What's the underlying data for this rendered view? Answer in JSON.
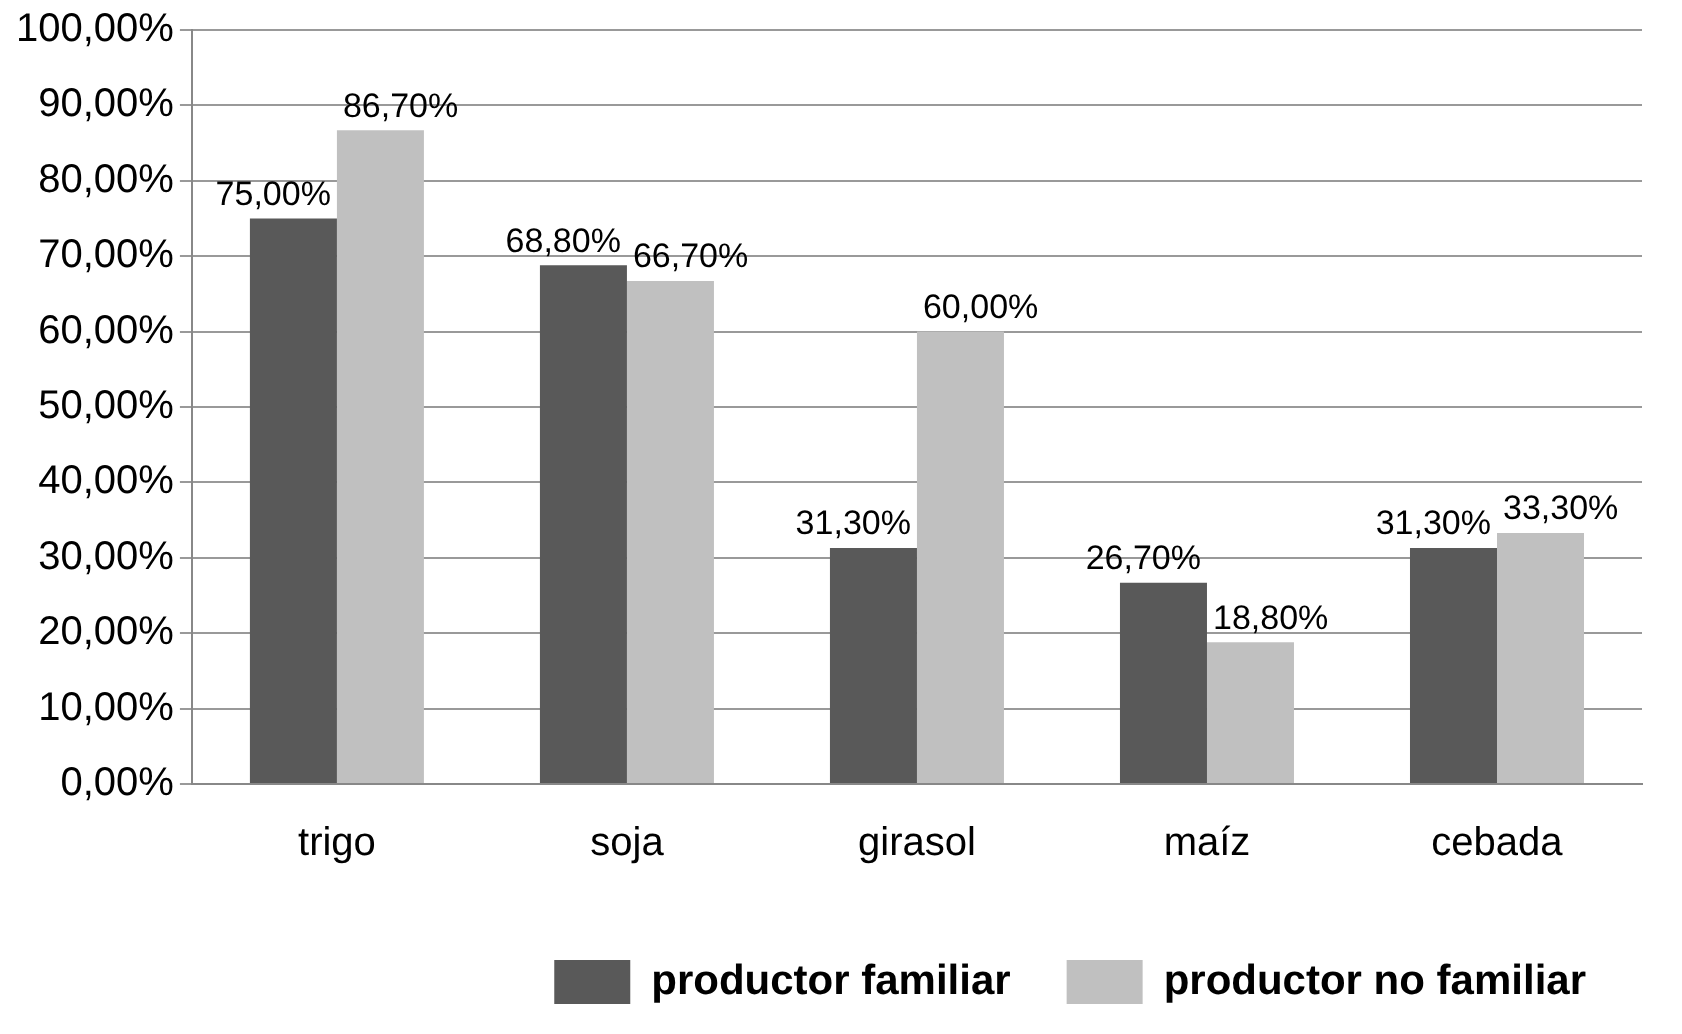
{
  "chart_data": {
    "type": "bar",
    "categories": [
      "trigo",
      "soja",
      "girasol",
      "maíz",
      "cebada"
    ],
    "series": [
      {
        "name": "productor familiar",
        "color": "#595959",
        "values": [
          75.0,
          68.8,
          31.3,
          26.7,
          31.3
        ],
        "value_labels": [
          "75,00%",
          "68,80%",
          "31,30%",
          "26,70%",
          "31,30%"
        ]
      },
      {
        "name": "productor no familiar",
        "color": "#c0c0c0",
        "values": [
          86.7,
          66.7,
          60.0,
          18.8,
          33.3
        ],
        "value_labels": [
          "86,70%",
          "66,70%",
          "60,00%",
          "18,80%",
          "33,30%"
        ]
      }
    ],
    "ylim": [
      0,
      100
    ],
    "yticks": [
      {
        "value": 0,
        "label": "0,00%"
      },
      {
        "value": 10,
        "label": "10,00%"
      },
      {
        "value": 20,
        "label": "20,00%"
      },
      {
        "value": 30,
        "label": "30,00%"
      },
      {
        "value": 40,
        "label": "40,00%"
      },
      {
        "value": 50,
        "label": "50,00%"
      },
      {
        "value": 60,
        "label": "60,00%"
      },
      {
        "value": 70,
        "label": "70,00%"
      },
      {
        "value": 80,
        "label": "80,00%"
      },
      {
        "value": 90,
        "label": "90,00%"
      },
      {
        "value": 100,
        "label": "100,00%"
      }
    ],
    "grid": "y",
    "legend": "bottom right"
  }
}
